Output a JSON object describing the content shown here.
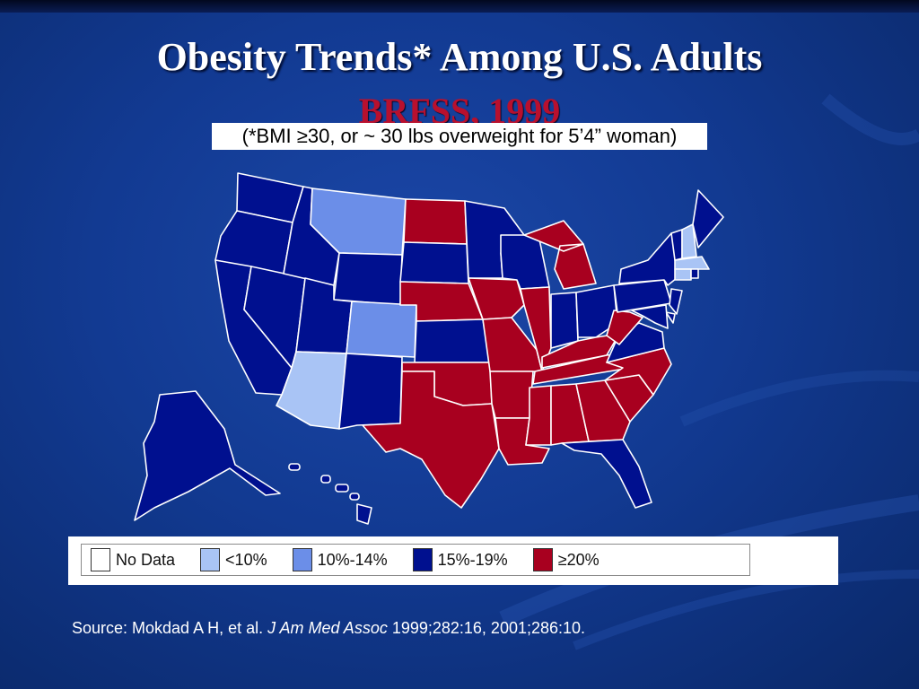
{
  "slide": {
    "title": "Obesity Trends* Among U.S. Adults",
    "subtitle": "BRFSS, 1999",
    "note": "(*BMI ≥30, or ~ 30 lbs overweight for 5’4” woman)"
  },
  "colors": {
    "no_data": "#ffffff",
    "lt10": "#a9c4f5",
    "p10_14": "#6b8ee8",
    "p15_19": "#00108f",
    "ge20": "#a8001f",
    "background": "#143c98"
  },
  "legend": [
    {
      "label": "No Data",
      "key": "no_data"
    },
    {
      "label": "<10%",
      "key": "lt10"
    },
    {
      "label": "10%-14%",
      "key": "p10_14"
    },
    {
      "label": "15%-19%",
      "key": "p15_19"
    },
    {
      "label": "≥20%",
      "key": "ge20"
    }
  ],
  "map_data": {
    "categories": {
      "WA": "p15_19",
      "OR": "p15_19",
      "CA": "p15_19",
      "NV": "p15_19",
      "ID": "p15_19",
      "MT": "p10_14",
      "WY": "p15_19",
      "UT": "p15_19",
      "CO": "p10_14",
      "AZ": "lt10",
      "NM": "p15_19",
      "ND": "ge20",
      "SD": "p15_19",
      "NE": "ge20",
      "KS": "p15_19",
      "OK": "ge20",
      "TX": "ge20",
      "MN": "p15_19",
      "IA": "ge20",
      "MO": "ge20",
      "AR": "ge20",
      "LA": "ge20",
      "WI": "p15_19",
      "IL": "ge20",
      "MI": "ge20",
      "IN": "p15_19",
      "OH": "p15_19",
      "KY": "ge20",
      "TN": "ge20",
      "MS": "ge20",
      "AL": "ge20",
      "GA": "ge20",
      "FL": "p15_19",
      "SC": "ge20",
      "NC": "ge20",
      "VA": "p15_19",
      "WV": "ge20",
      "PA": "p15_19",
      "NY": "p15_19",
      "NJ": "p15_19",
      "DE": "p15_19",
      "MD": "p15_19",
      "VT": "p15_19",
      "NH": "lt10",
      "ME": "p15_19",
      "MA": "lt10",
      "CT": "lt10",
      "RI": "p15_19",
      "AK": "p15_19",
      "HI": "p15_19"
    }
  },
  "source": {
    "prefix": "Source: Mokdad A H, et al. ",
    "journal": "J Am Med Assoc",
    "suffix": " 1999;282:16, 2001;286:10."
  }
}
